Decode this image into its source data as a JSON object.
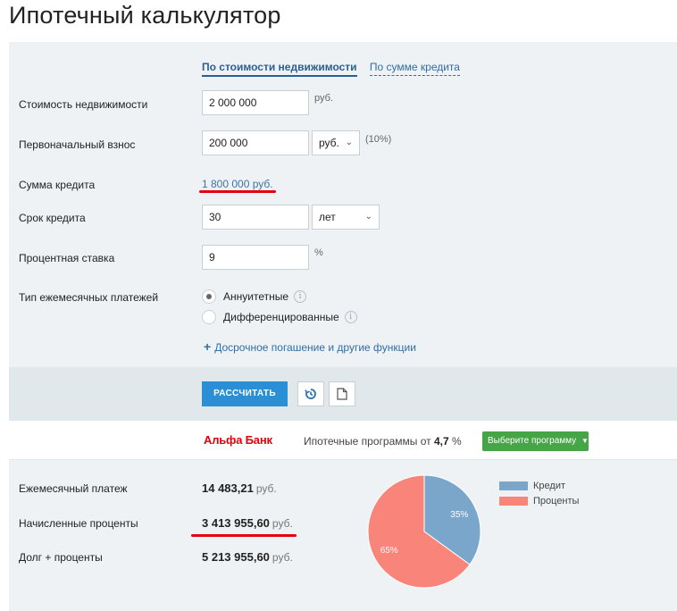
{
  "page": {
    "title": "Ипотечный калькулятор"
  },
  "tabs": [
    {
      "label": "По стоимости недвижимости",
      "active": true
    },
    {
      "label": "По сумме кредита",
      "active": false
    }
  ],
  "form": {
    "property_cost": {
      "label": "Стоимость недвижимости",
      "value": "2 000 000",
      "unit": "руб."
    },
    "down_payment": {
      "label": "Первоначальный взнос",
      "value": "200 000",
      "unit_select": "руб.",
      "percent": "(10%)"
    },
    "loan_amount": {
      "label": "Сумма кредита",
      "value": "1 800 000",
      "unit": "руб."
    },
    "loan_term": {
      "label": "Срок кредита",
      "value": "30",
      "unit_select": "лет"
    },
    "interest_rate": {
      "label": "Процентная ставка",
      "value": "9",
      "unit": "%"
    },
    "payment_type": {
      "label": "Тип ежемесячных платежей",
      "options": [
        {
          "label": "Аннуитетные",
          "selected": true
        },
        {
          "label": "Дифференцированные",
          "selected": false
        }
      ]
    },
    "extra_link": "Досрочное погашение и другие функции"
  },
  "actions": {
    "calculate_label": "РАССЧИТАТЬ"
  },
  "bank": {
    "logo": "Альфа Банк",
    "text": "Ипотечные программы от",
    "rate": "4,7",
    "rate_unit": "%",
    "program_button": "Выберите программу"
  },
  "results": {
    "monthly_payment": {
      "label": "Ежемесячный платеж",
      "value": "14 483,21",
      "unit": "руб."
    },
    "interest": {
      "label": "Начисленные проценты",
      "value": "3 413 955,60",
      "unit": "руб."
    },
    "total": {
      "label": "Долг + проценты",
      "value": "5 213 955,60",
      "unit": "руб."
    }
  },
  "chart_data": {
    "type": "pie",
    "categories": [
      "Кредит",
      "Проценты"
    ],
    "values": [
      35,
      65
    ],
    "value_labels": [
      "35%",
      "65%"
    ],
    "colors": [
      "#7aa6cb",
      "#f9847a"
    ],
    "legend": "right"
  }
}
